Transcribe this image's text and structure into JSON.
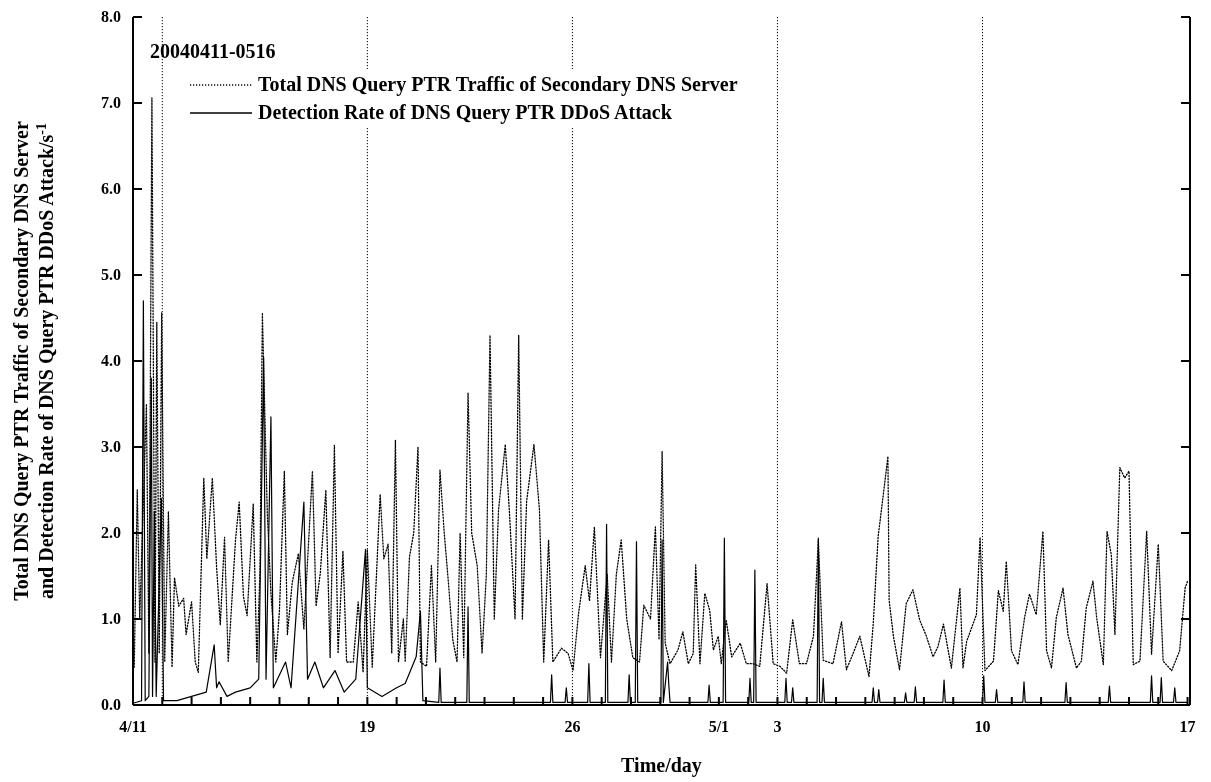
{
  "chart_data": {
    "type": "line",
    "title": "20040411-0516",
    "xlabel": "Time/day",
    "ylabel": "Total DNS Query PTR Traffic of Secondary DNS Server\nand Detection Rate of  DNS Query PTR DDoS Attack/s$^{-1}$",
    "xlim": [
      "2004-04-11",
      "2004-05-17T02:00"
    ],
    "ylim": [
      0,
      8
    ],
    "xticks": [
      {
        "value": "2004-04-11",
        "label": "4/11"
      },
      {
        "value": "2004-04-12",
        "label": null
      },
      {
        "value": "2004-04-13",
        "label": null
      },
      {
        "value": "2004-04-14",
        "label": null
      },
      {
        "value": "2004-04-15",
        "label": null
      },
      {
        "value": "2004-04-16",
        "label": null
      },
      {
        "value": "2004-04-17",
        "label": null
      },
      {
        "value": "2004-04-18",
        "label": null
      },
      {
        "value": "2004-04-19",
        "label": "19"
      },
      {
        "value": "2004-04-20",
        "label": null
      },
      {
        "value": "2004-04-21",
        "label": null
      },
      {
        "value": "2004-04-22",
        "label": null
      },
      {
        "value": "2004-04-23",
        "label": null
      },
      {
        "value": "2004-04-24",
        "label": null
      },
      {
        "value": "2004-04-25",
        "label": null
      },
      {
        "value": "2004-04-26",
        "label": "26"
      },
      {
        "value": "2004-04-27",
        "label": null
      },
      {
        "value": "2004-04-28",
        "label": null
      },
      {
        "value": "2004-04-29",
        "label": null
      },
      {
        "value": "2004-04-30",
        "label": null
      },
      {
        "value": "2004-05-01",
        "label": "5/1"
      },
      {
        "value": "2004-05-02",
        "label": null
      },
      {
        "value": "2004-05-03",
        "label": "3"
      },
      {
        "value": "2004-05-04",
        "label": null
      },
      {
        "value": "2004-05-05",
        "label": null
      },
      {
        "value": "2004-05-06",
        "label": null
      },
      {
        "value": "2004-05-07",
        "label": null
      },
      {
        "value": "2004-05-08",
        "label": null
      },
      {
        "value": "2004-05-09",
        "label": null
      },
      {
        "value": "2004-05-10",
        "label": "10"
      },
      {
        "value": "2004-05-11",
        "label": null
      },
      {
        "value": "2004-05-12",
        "label": null
      },
      {
        "value": "2004-05-13",
        "label": null
      },
      {
        "value": "2004-05-14",
        "label": null
      },
      {
        "value": "2004-05-15",
        "label": null
      },
      {
        "value": "2004-05-16",
        "label": null
      },
      {
        "value": "2004-05-17",
        "label": "17"
      }
    ],
    "yticks": [
      {
        "value": 0,
        "label": "0.0"
      },
      {
        "value": 1,
        "label": "1.0"
      },
      {
        "value": 2,
        "label": "2.0"
      },
      {
        "value": 3,
        "label": "3.0"
      },
      {
        "value": 4,
        "label": "4.0"
      },
      {
        "value": 5,
        "label": "5.0"
      },
      {
        "value": 6,
        "label": "6.0"
      },
      {
        "value": 7,
        "label": "7.0"
      },
      {
        "value": 8,
        "label": "8.0"
      }
    ],
    "ref_lines": [
      {
        "axis": "x",
        "value": "2004-04-12",
        "line_style": "dotted"
      },
      {
        "axis": "x",
        "value": "2004-04-19",
        "line_style": "dotted"
      },
      {
        "axis": "x",
        "value": "2004-04-26",
        "line_style": "dotted"
      },
      {
        "axis": "x",
        "value": "2004-05-03",
        "line_style": "dotted"
      },
      {
        "axis": "x",
        "value": "2004-05-10",
        "line_style": "dotted"
      }
    ],
    "legend": "top left",
    "marker": "none",
    "series": [
      {
        "name": "Total DNS Query PTR Traffic of Secondary DNS Server",
        "color": "#000000",
        "line_style": "dotted",
        "x": [
          "2004-04-11T01:00",
          "2004-04-11T03:30",
          "2004-04-11T05:30",
          "2004-04-11T11:00",
          "2004-04-11T13:00",
          "2004-04-11T15:30",
          "2004-04-11T18:00",
          "2004-04-11T19:30",
          "2004-04-11T21:30",
          "2004-04-11T23:30",
          "2004-04-12T02:00",
          "2004-04-12T05:00",
          "2004-04-12T08:00",
          "2004-04-12T10:00",
          "2004-04-12T13:30",
          "2004-04-12T17:30",
          "2004-04-12T19:30",
          "2004-04-13T00:00",
          "2004-04-13T03:00",
          "2004-04-13T05:30",
          "2004-04-13T10:00",
          "2004-04-13T12:30",
          "2004-04-13T17:00",
          "2004-04-13T20:30",
          "2004-04-13T23:30",
          "2004-04-14T03:00",
          "2004-04-14T06:00",
          "2004-04-14T12:00",
          "2004-04-14T15:00",
          "2004-04-14T18:30",
          "2004-04-14T21:30",
          "2004-04-15T02:30",
          "2004-04-15T05:30",
          "2004-04-15T08:00",
          "2004-04-15T10:00",
          "2004-04-15T14:00",
          "2004-04-15T17:00",
          "2004-04-15T21:00",
          "2004-04-16T00:00",
          "2004-04-16T04:00",
          "2004-04-16T06:30",
          "2004-04-16T10:30",
          "2004-04-16T15:30",
          "2004-04-16T20:00",
          "2004-04-17T03:00",
          "2004-04-17T06:00",
          "2004-04-17T09:30",
          "2004-04-17T14:00",
          "2004-04-17T17:30",
          "2004-04-17T21:00",
          "2004-04-18T00:00",
          "2004-04-18T04:00",
          "2004-04-18T07:00",
          "2004-04-18T12:30",
          "2004-04-18T16:30",
          "2004-04-18T20:30",
          "2004-04-19T00:00",
          "2004-04-19T04:00",
          "2004-04-19T10:30",
          "2004-04-19T13:30",
          "2004-04-19T17:00",
          "2004-04-19T20:00",
          "2004-04-19T23:00",
          "2004-04-20T01:30",
          "2004-04-20T05:30",
          "2004-04-20T07:00",
          "2004-04-20T10:30",
          "2004-04-20T14:00",
          "2004-04-20T17:30",
          "2004-04-20T19:30",
          "2004-04-21T00:30",
          "2004-04-21T04:30",
          "2004-04-21T08:00",
          "2004-04-21T11:30",
          "2004-04-21T15:00",
          "2004-04-21T18:30",
          "2004-04-21T22:00",
          "2004-04-22T01:30",
          "2004-04-22T04:00",
          "2004-04-22T07:00",
          "2004-04-22T10:30",
          "2004-04-22T13:30",
          "2004-04-22T18:00",
          "2004-04-22T22:00",
          "2004-04-23T01:30",
          "2004-04-23T04:30",
          "2004-04-23T08:00",
          "2004-04-23T11:30",
          "2004-04-23T17:00",
          "2004-04-23T20:30",
          "2004-04-24T01:00",
          "2004-04-24T04:00",
          "2004-04-24T07:00",
          "2004-04-24T10:30",
          "2004-04-24T16:30",
          "2004-04-24T21:00",
          "2004-04-25T00:30",
          "2004-04-25T04:30",
          "2004-04-25T08:00",
          "2004-04-25T15:00",
          "2004-04-25T20:30",
          "2004-04-26T00:30",
          "2004-04-26T05:00",
          "2004-04-26T10:30",
          "2004-04-26T14:00",
          "2004-04-26T18:00",
          "2004-04-26T23:00",
          "2004-04-27T04:30",
          "2004-04-27T08:00",
          "2004-04-27T12:00",
          "2004-04-27T16:00",
          "2004-04-27T20:30",
          "2004-04-28T01:30",
          "2004-04-28T07:00",
          "2004-04-28T10:30",
          "2004-04-28T16:00",
          "2004-04-28T20:00",
          "2004-04-28T23:00",
          "2004-04-29T01:30",
          "2004-04-29T04:00",
          "2004-04-29T08:00",
          "2004-04-29T14:30",
          "2004-04-29T18:30",
          "2004-04-29T23:00",
          "2004-04-30T03:00",
          "2004-04-30T05:00",
          "2004-04-30T08:30",
          "2004-04-30T12:30",
          "2004-04-30T16:30",
          "2004-04-30T19:30",
          "2004-04-30T23:30",
          "2004-05-01T02:00",
          "2004-05-01T06:00",
          "2004-05-01T10:30",
          "2004-05-01T17:30",
          "2004-05-01T22:30",
          "2004-05-02T04:00",
          "2004-05-02T09:30",
          "2004-05-02T15:30",
          "2004-05-02T20:30",
          "2004-05-03T02:00",
          "2004-05-03T07:30",
          "2004-05-03T12:30",
          "2004-05-03T18:00",
          "2004-05-03T23:45",
          "2004-05-04T05:30",
          "2004-05-04T09:30",
          "2004-05-04T13:30",
          "2004-05-04T21:30",
          "2004-05-05T04:30",
          "2004-05-05T08:30",
          "2004-05-05T14:00",
          "2004-05-05T19:30",
          "2004-05-06T03:00",
          "2004-05-06T06:30",
          "2004-05-06T10:30",
          "2004-05-06T14:30",
          "2004-05-06T18:30",
          "2004-05-06T19:30",
          "2004-05-06T23:00",
          "2004-05-07T04:00",
          "2004-05-07T09:30",
          "2004-05-07T15:00",
          "2004-05-07T20:30",
          "2004-05-08T02:00",
          "2004-05-08T07:30",
          "2004-05-08T11:30",
          "2004-05-08T16:00",
          "2004-05-08T22:30",
          "2004-05-09T05:30",
          "2004-05-09T08:00",
          "2004-05-09T11:00",
          "2004-05-09T19:00",
          "2004-05-09T22:00",
          "2004-05-10T02:00",
          "2004-05-10T09:00",
          "2004-05-10T13:00",
          "2004-05-10T17:00",
          "2004-05-10T19:30",
          "2004-05-10T23:45",
          "2004-05-11T05:00",
          "2004-05-11T10:30",
          "2004-05-11T14:30",
          "2004-05-11T20:00",
          "2004-05-12T01:30",
          "2004-05-12T04:30",
          "2004-05-12T08:30",
          "2004-05-12T12:30",
          "2004-05-12T18:00",
          "2004-05-12T22:00",
          "2004-05-13T05:00",
          "2004-05-13T09:00",
          "2004-05-13T13:00",
          "2004-05-13T18:30",
          "2004-05-13T21:30",
          "2004-05-14T03:00",
          "2004-05-14T06:00",
          "2004-05-14T09:30",
          "2004-05-14T12:30",
          "2004-05-14T16:30",
          "2004-05-14T20:30",
          "2004-05-15T00:00",
          "2004-05-15T03:30",
          "2004-05-15T09:00",
          "2004-05-15T14:30",
          "2004-05-15T18:30",
          "2004-05-16T00:00",
          "2004-05-16T04:00",
          "2004-05-16T11:00",
          "2004-05-16T17:30",
          "2004-05-16T22:00",
          "2004-05-17T00:00"
        ],
        "values": [
          0.44,
          2.5,
          1.0,
          3.5,
          0.6,
          7.06,
          0.5,
          4.45,
          0.6,
          4.56,
          0.5,
          2.25,
          0.44,
          1.48,
          1.15,
          1.24,
          0.82,
          1.2,
          0.5,
          0.38,
          2.64,
          1.7,
          2.64,
          1.6,
          0.93,
          1.95,
          0.5,
          1.92,
          2.36,
          1.26,
          1.04,
          2.34,
          0.5,
          1.54,
          4.56,
          2.25,
          1.3,
          0.5,
          1.1,
          2.72,
          0.82,
          1.43,
          1.76,
          0.88,
          2.72,
          1.15,
          1.54,
          2.5,
          0.55,
          3.02,
          0.6,
          1.79,
          0.5,
          0.5,
          1.2,
          0.38,
          1.81,
          0.44,
          2.45,
          1.7,
          1.87,
          0.6,
          3.08,
          0.5,
          1.0,
          0.5,
          1.72,
          2.0,
          3.0,
          0.5,
          0.45,
          1.62,
          0.5,
          2.73,
          2.0,
          1.41,
          0.76,
          0.5,
          2.0,
          0.55,
          3.63,
          2.0,
          1.62,
          0.6,
          1.52,
          4.3,
          1.0,
          2.27,
          3.03,
          2.22,
          1.0,
          4.3,
          1.0,
          2.37,
          3.03,
          2.27,
          0.5,
          1.92,
          0.5,
          0.66,
          0.6,
          0.4,
          1.06,
          1.62,
          1.21,
          2.07,
          0.55,
          1.52,
          0.5,
          1.52,
          1.92,
          1.0,
          0.55,
          0.5,
          1.16,
          1.0,
          2.07,
          0.76,
          2.95,
          0.72,
          0.48,
          0.64,
          0.85,
          0.48,
          0.6,
          1.63,
          0.48,
          1.3,
          1.1,
          0.64,
          0.8,
          0.48,
          0.99,
          0.56,
          0.72,
          0.48,
          0.48,
          0.45,
          1.41,
          0.48,
          0.45,
          0.37,
          0.99,
          0.48,
          0.48,
          0.8,
          1.92,
          0.52,
          0.48,
          0.97,
          0.41,
          0.6,
          0.8,
          0.33,
          0.95,
          1.96,
          2.42,
          2.89,
          1.22,
          0.8,
          0.41,
          1.18,
          1.34,
          0.99,
          0.8,
          0.56,
          0.68,
          0.94,
          0.43,
          1.36,
          0.43,
          0.74,
          1.05,
          1.95,
          0.4,
          0.51,
          1.33,
          1.09,
          1.67,
          0.63,
          0.47,
          1.02,
          1.29,
          1.05,
          2.02,
          0.63,
          0.43,
          1.02,
          1.36,
          0.82,
          0.43,
          0.51,
          1.13,
          1.44,
          1.02,
          0.47,
          2.02,
          1.75,
          0.82,
          2.76,
          2.64,
          2.72,
          0.47,
          0.51,
          2.02,
          0.59,
          1.87,
          0.51,
          0.4,
          0.63,
          1.36,
          1.44
        ]
      },
      {
        "name": "Detection Rate of DNS Query PTR DDoS Attack",
        "color": "#000000",
        "line_style": "solid",
        "x": [
          "2004-04-11T00:00",
          "2004-04-11T07:00",
          "2004-04-11T08:30",
          "2004-04-11T10:00",
          "2004-04-11T13:00",
          "2004-04-11T15:00",
          "2004-04-11T16:00",
          "2004-04-11T17:30",
          "2004-04-11T19:00",
          "2004-04-11T23:15",
          "2004-04-12T01:00",
          "2004-04-12T12:00",
          "2004-04-13T00:00",
          "2004-04-13T12:00",
          "2004-04-13T18:30",
          "2004-04-13T20:30",
          "2004-04-13T22:30",
          "2004-04-14T05:00",
          "2004-04-14T12:00",
          "2004-04-15T00:00",
          "2004-04-15T07:00",
          "2004-04-15T11:00",
          "2004-04-15T13:00",
          "2004-04-15T17:00",
          "2004-04-15T19:00",
          "2004-04-16T05:00",
          "2004-04-16T09:30",
          "2004-04-16T20:00",
          "2004-04-16T23:00",
          "2004-04-17T05:00",
          "2004-04-17T12:00",
          "2004-04-17T21:30",
          "2004-04-18T05:00",
          "2004-04-18T14:30",
          "2004-04-18T22:30",
          "2004-04-19T00:00",
          "2004-04-19T12:00",
          "2004-04-20T00:00",
          "2004-04-20T07:00",
          "2004-04-20T16:00",
          "2004-04-20T19:30",
          "2004-04-20T21:30",
          "2004-04-21T10:30",
          "2004-04-21T11:30",
          "2004-04-21T12:30",
          "2004-04-22T09:30",
          "2004-04-22T10:30",
          "2004-04-22T11:30",
          "2004-04-25T06:00",
          "2004-04-25T07:00",
          "2004-04-25T08:00",
          "2004-04-25T18:00",
          "2004-04-25T19:00",
          "2004-04-25T20:00",
          "2004-04-26T12:30",
          "2004-04-26T13:30",
          "2004-04-26T14:30",
          "2004-04-27T03:00",
          "2004-04-27T04:00",
          "2004-04-27T05:00",
          "2004-04-27T21:30",
          "2004-04-27T22:30",
          "2004-04-27T23:30",
          "2004-04-28T03:30",
          "2004-04-28T04:30",
          "2004-04-28T05:30",
          "2004-04-29T00:30",
          "2004-04-29T01:30",
          "2004-04-29T02:30",
          "2004-04-29T06:00",
          "2004-04-29T07:00",
          "2004-04-29T08:00",
          "2004-04-30T15:00",
          "2004-04-30T16:00",
          "2004-04-30T17:00",
          "2004-05-01T03:30",
          "2004-05-01T04:30",
          "2004-05-01T05:30",
          "2004-05-02T00:30",
          "2004-05-02T01:30",
          "2004-05-02T02:30",
          "2004-05-02T04:30",
          "2004-05-02T05:30",
          "2004-05-02T06:30",
          "2004-05-03T06:00",
          "2004-05-03T07:00",
          "2004-05-03T08:00",
          "2004-05-03T11:30",
          "2004-05-03T12:30",
          "2004-05-03T13:30",
          "2004-05-04T08:30",
          "2004-05-04T09:30",
          "2004-05-04T10:30",
          "2004-05-04T12:30",
          "2004-05-04T13:30",
          "2004-05-04T14:30",
          "2004-05-06T05:30",
          "2004-05-06T06:30",
          "2004-05-06T07:30",
          "2004-05-06T10:00",
          "2004-05-06T11:00",
          "2004-05-06T12:00",
          "2004-05-07T08:00",
          "2004-05-07T09:00",
          "2004-05-07T10:00",
          "2004-05-07T16:00",
          "2004-05-07T17:00",
          "2004-05-07T18:00",
          "2004-05-08T15:30",
          "2004-05-08T16:30",
          "2004-05-08T17:30",
          "2004-05-10T00:00",
          "2004-05-10T01:00",
          "2004-05-10T02:00",
          "2004-05-10T10:30",
          "2004-05-10T11:30",
          "2004-05-10T12:30",
          "2004-05-11T09:00",
          "2004-05-11T10:00",
          "2004-05-11T11:00",
          "2004-05-12T19:30",
          "2004-05-12T20:30",
          "2004-05-12T21:30",
          "2004-05-14T07:00",
          "2004-05-14T08:00",
          "2004-05-14T09:00",
          "2004-05-15T17:30",
          "2004-05-15T18:30",
          "2004-05-15T19:30",
          "2004-05-16T01:30",
          "2004-05-16T02:30",
          "2004-05-16T03:30",
          "2004-05-16T12:30",
          "2004-05-16T13:30",
          "2004-05-16T14:30",
          "2004-05-17T00:00"
        ],
        "values": [
          0.02,
          0.05,
          4.7,
          0.05,
          0.1,
          3.8,
          0.1,
          2.25,
          0.1,
          2.4,
          0.05,
          0.05,
          0.1,
          0.15,
          0.7,
          0.2,
          0.27,
          0.1,
          0.15,
          0.2,
          0.3,
          4.04,
          0.3,
          3.35,
          0.2,
          0.5,
          0.2,
          2.36,
          0.3,
          0.5,
          0.2,
          0.4,
          0.15,
          0.3,
          1.81,
          0.2,
          0.1,
          0.2,
          0.25,
          0.56,
          1.09,
          0.05,
          0.03,
          0.43,
          0.03,
          0.03,
          1.14,
          0.03,
          0.03,
          0.35,
          0.03,
          0.03,
          0.2,
          0.03,
          0.03,
          0.48,
          0.03,
          0.03,
          2.1,
          0.03,
          0.03,
          0.35,
          0.03,
          0.03,
          1.9,
          0.03,
          0.03,
          1.92,
          0.03,
          0.5,
          0.23,
          0.03,
          0.03,
          0.23,
          0.03,
          0.03,
          1.94,
          0.03,
          0.03,
          0.31,
          0.03,
          0.03,
          1.57,
          0.03,
          0.03,
          0.31,
          0.03,
          0.03,
          0.2,
          0.03,
          0.03,
          1.94,
          0.03,
          0.03,
          0.31,
          0.03,
          0.03,
          0.2,
          0.03,
          0.03,
          0.18,
          0.03,
          0.03,
          0.14,
          0.03,
          0.03,
          0.21,
          0.03,
          0.03,
          0.29,
          0.03,
          0.03,
          0.34,
          0.03,
          0.03,
          0.18,
          0.03,
          0.03,
          0.27,
          0.03,
          0.03,
          0.26,
          0.03,
          0.03,
          0.22,
          0.03,
          0.03,
          0.34,
          0.03,
          0.03,
          0.32,
          0.03,
          0.03,
          0.2,
          0.03,
          0.03
        ]
      }
    ]
  }
}
